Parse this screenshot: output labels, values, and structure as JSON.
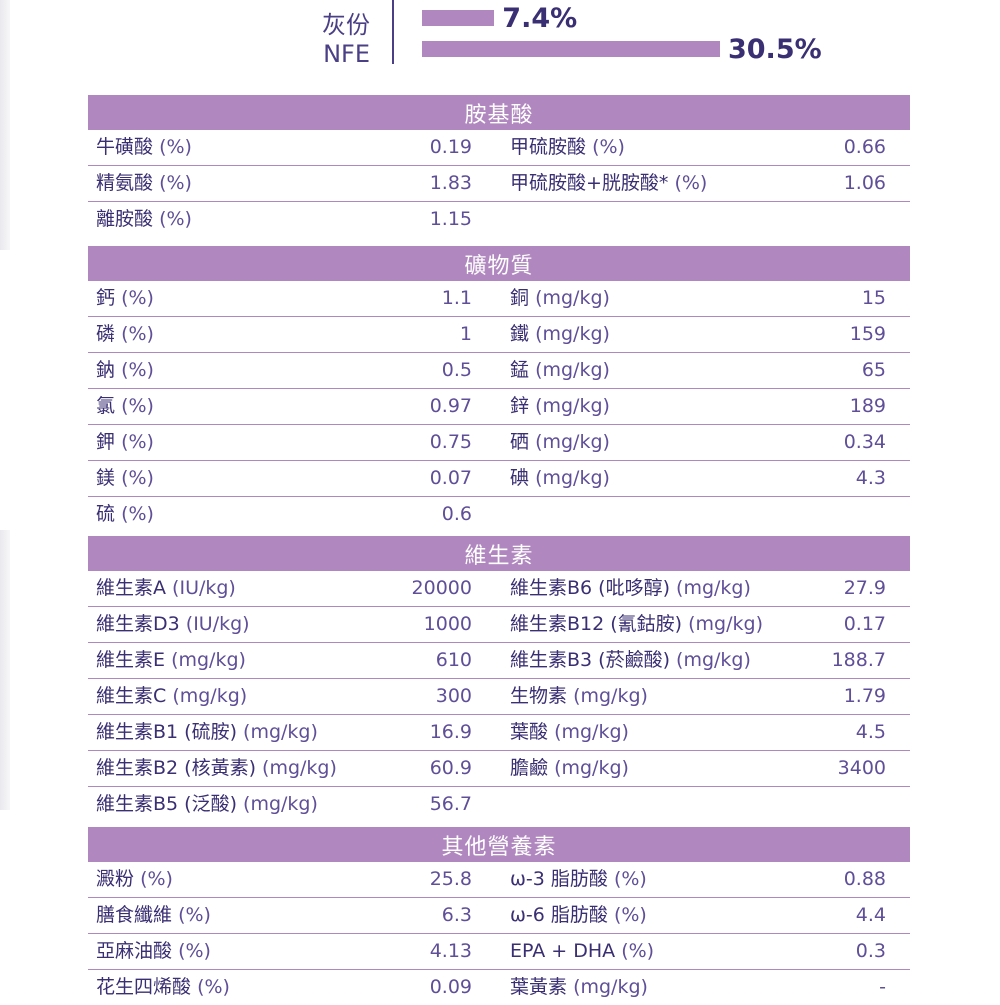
{
  "composition": [
    {
      "label": "灰份",
      "value": "7.4%",
      "percent": 7.4
    },
    {
      "label": "NFE",
      "value": "30.5%",
      "percent": 30.5
    }
  ],
  "sections": [
    {
      "title": "胺基酸",
      "rows": [
        {
          "left_name": "牛磺酸",
          "left_unit": "(%)",
          "left_value": "0.19",
          "right_name": "甲硫胺酸",
          "right_unit": "(%)",
          "right_value": "0.66"
        },
        {
          "left_name": "精氨酸",
          "left_unit": "(%)",
          "left_value": "1.83",
          "right_name": "甲硫胺酸+胱胺酸*",
          "right_unit": "(%)",
          "right_value": "1.06"
        },
        {
          "left_name": "離胺酸",
          "left_unit": "(%)",
          "left_value": "1.15",
          "right_name": "",
          "right_unit": "",
          "right_value": ""
        }
      ]
    },
    {
      "title": "礦物質",
      "rows": [
        {
          "left_name": "鈣",
          "left_unit": "(%)",
          "left_value": "1.1",
          "right_name": "銅",
          "right_unit": "(mg/kg)",
          "right_value": "15"
        },
        {
          "left_name": "磷",
          "left_unit": "(%)",
          "left_value": "1",
          "right_name": "鐵",
          "right_unit": "(mg/kg)",
          "right_value": "159"
        },
        {
          "left_name": "鈉",
          "left_unit": "(%)",
          "left_value": "0.5",
          "right_name": "錳",
          "right_unit": "(mg/kg)",
          "right_value": "65"
        },
        {
          "left_name": "氯",
          "left_unit": "(%)",
          "left_value": "0.97",
          "right_name": "鋅",
          "right_unit": "(mg/kg)",
          "right_value": "189"
        },
        {
          "left_name": "鉀",
          "left_unit": "(%)",
          "left_value": "0.75",
          "right_name": "硒",
          "right_unit": "(mg/kg)",
          "right_value": "0.34"
        },
        {
          "left_name": "鎂",
          "left_unit": "(%)",
          "left_value": "0.07",
          "right_name": "碘",
          "right_unit": "(mg/kg)",
          "right_value": "4.3"
        },
        {
          "left_name": "硫",
          "left_unit": "(%)",
          "left_value": "0.6",
          "right_name": "",
          "right_unit": "",
          "right_value": ""
        }
      ]
    },
    {
      "title": "維生素",
      "rows": [
        {
          "left_name": "維生素A",
          "left_unit": "(IU/kg)",
          "left_value": "20000",
          "right_name": "維生素B6 (吡哆醇)",
          "right_unit": "(mg/kg)",
          "right_value": "27.9"
        },
        {
          "left_name": "維生素D3",
          "left_unit": "(IU/kg)",
          "left_value": "1000",
          "right_name": "維生素B12 (氰鈷胺)",
          "right_unit": "(mg/kg)",
          "right_value": "0.17"
        },
        {
          "left_name": "維生素E",
          "left_unit": "(mg/kg)",
          "left_value": "610",
          "right_name": "維生素B3 (菸鹼酸)",
          "right_unit": "(mg/kg)",
          "right_value": "188.7"
        },
        {
          "left_name": "維生素C",
          "left_unit": "(mg/kg)",
          "left_value": "300",
          "right_name": "生物素",
          "right_unit": "(mg/kg)",
          "right_value": "1.79"
        },
        {
          "left_name": "維生素B1 (硫胺)",
          "left_unit": "(mg/kg)",
          "left_value": "16.9",
          "right_name": "葉酸",
          "right_unit": "(mg/kg)",
          "right_value": "4.5"
        },
        {
          "left_name": "維生素B2 (核黃素)",
          "left_unit": "(mg/kg)",
          "left_value": "60.9",
          "right_name": "膽鹼",
          "right_unit": "(mg/kg)",
          "right_value": "3400"
        },
        {
          "left_name": "維生素B5 (泛酸)",
          "left_unit": "(mg/kg)",
          "left_value": "56.7",
          "right_name": "",
          "right_unit": "",
          "right_value": ""
        }
      ]
    },
    {
      "title": "其他營養素",
      "rows": [
        {
          "left_name": "澱粉",
          "left_unit": "(%)",
          "left_value": "25.8",
          "right_name": "ω-3 脂肪酸",
          "right_unit": "(%)",
          "right_value": "0.88"
        },
        {
          "left_name": "膳食纖維",
          "left_unit": "(%)",
          "left_value": "6.3",
          "right_name": "ω-6 脂肪酸",
          "right_unit": "(%)",
          "right_value": "4.4"
        },
        {
          "left_name": "亞麻油酸",
          "left_unit": "(%)",
          "left_value": "4.13",
          "right_name": "EPA + DHA",
          "right_unit": "(%)",
          "right_value": "0.3"
        },
        {
          "left_name": "花生四烯酸",
          "left_unit": "(%)",
          "left_value": "0.09",
          "right_name": "葉黃素",
          "right_unit": "(mg/kg)",
          "right_value": "-"
        }
      ]
    }
  ],
  "colors": {
    "accent": "#b087bf",
    "text": "#3b2f73",
    "header_text": "#ffffff"
  }
}
